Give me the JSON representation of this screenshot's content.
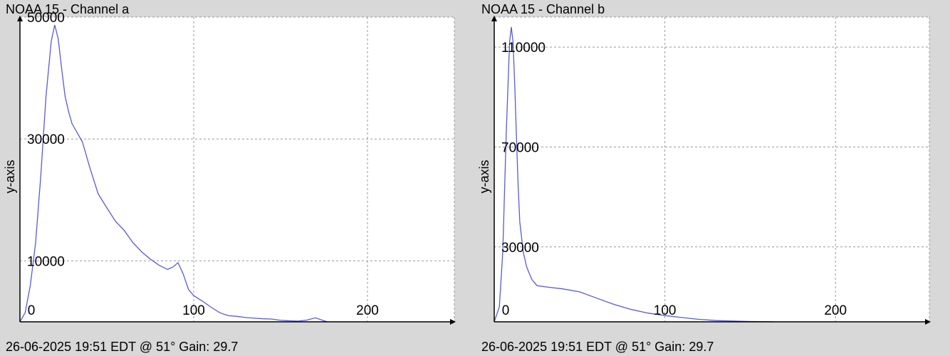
{
  "charts": [
    {
      "title": "NOAA 15 - Channel a",
      "footer": "26-06-2025 19:51 EDT @ 51° Gain: 29.7"
    },
    {
      "title": "NOAA 15 - Channel b",
      "footer": "26-06-2025 19:51 EDT @ 51° Gain: 29.7"
    }
  ],
  "colors": {
    "background": "#d8d8d8",
    "plot_area": "#ffffff",
    "series": "#5a5ad6",
    "grid": "#999999",
    "axis": "#000000"
  },
  "chart_data": [
    {
      "type": "line",
      "title": "NOAA 15 - Channel a",
      "xlabel": "",
      "ylabel": "y-axis",
      "xlim": [
        0,
        250
      ],
      "ylim": [
        0,
        50000
      ],
      "x_ticks": [
        0,
        100,
        200
      ],
      "x_tick_labels": [
        "0",
        "100",
        "200"
      ],
      "y_ticks": [
        10000,
        30000,
        50000
      ],
      "y_tick_labels": [
        "10000",
        "30000",
        "50000"
      ],
      "x_grid": [
        0,
        100,
        200
      ],
      "y_grid": [
        0,
        10000,
        30000,
        50000
      ],
      "grid": true,
      "series": [
        {
          "x": [
            0,
            3,
            6,
            9,
            12,
            15,
            18,
            20,
            22,
            24,
            26,
            28,
            30,
            33,
            36,
            40,
            45,
            50,
            55,
            60,
            65,
            70,
            75,
            80,
            85,
            88,
            91,
            94,
            97,
            100,
            105,
            110,
            115,
            120,
            125,
            130,
            135,
            140,
            145,
            150,
            155,
            160,
            165,
            170,
            175,
            177
          ],
          "y": [
            0,
            1500,
            6000,
            13000,
            24000,
            37000,
            46000,
            48700,
            46500,
            41500,
            37000,
            34500,
            32500,
            31000,
            29500,
            25500,
            21000,
            18700,
            16500,
            15000,
            13000,
            11500,
            10300,
            9300,
            8600,
            9000,
            9700,
            7800,
            5300,
            4300,
            3400,
            2400,
            1500,
            1000,
            900,
            700,
            600,
            500,
            450,
            250,
            180,
            120,
            280,
            650,
            180,
            0
          ]
        }
      ]
    },
    {
      "type": "line",
      "title": "NOAA 15 - Channel b",
      "xlabel": "",
      "ylabel": "y-axis",
      "xlim": [
        0,
        255
      ],
      "ylim": [
        0,
        122000
      ],
      "x_ticks": [
        0,
        100,
        200
      ],
      "x_tick_labels": [
        "0",
        "100",
        "200"
      ],
      "y_ticks": [
        30000,
        70000,
        110000
      ],
      "y_tick_labels": [
        "30000",
        "70000",
        "110000"
      ],
      "x_grid": [
        0,
        100,
        200
      ],
      "y_grid": [
        0,
        30000,
        70000,
        110000
      ],
      "grid": true,
      "series": [
        {
          "x": [
            0,
            3,
            5,
            7,
            9,
            10,
            11,
            12,
            13,
            14,
            15,
            17,
            19,
            22,
            25,
            30,
            40,
            50,
            60,
            70,
            80,
            90,
            100,
            110,
            120,
            130,
            140,
            150,
            160,
            164
          ],
          "y": [
            0,
            6000,
            28000,
            75000,
            112000,
            118000,
            112000,
            95000,
            75000,
            55000,
            40000,
            28000,
            22000,
            17000,
            14500,
            14000,
            13200,
            12000,
            9500,
            7000,
            5000,
            3500,
            2500,
            1700,
            1000,
            500,
            300,
            150,
            50,
            0
          ]
        }
      ]
    }
  ]
}
